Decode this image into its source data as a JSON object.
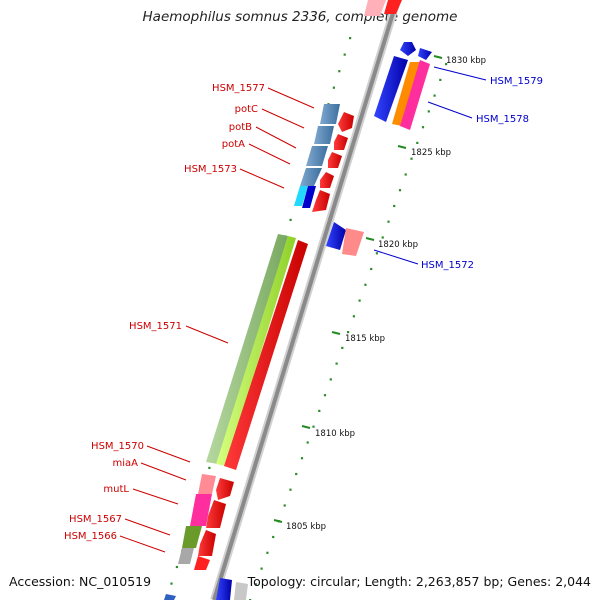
{
  "title": "Haemophilus somnus 2336, complete genome",
  "footer": {
    "accession": "Accession: NC_010519",
    "summary": "Topology: circular; Length: 2,263,857 bp; Genes: 2,044"
  },
  "scale_labels": [
    "1830 kbp",
    "1825 kbp",
    "1820 kbp",
    "1815 kbp",
    "1810 kbp",
    "1805 kbp"
  ],
  "genes_left": [
    "HSM_1577",
    "potC",
    "potB",
    "potA",
    "HSM_1573",
    "HSM_1571",
    "HSM_1570",
    "miaA",
    "mutL",
    "HSM_1567",
    "HSM_1566"
  ],
  "genes_right": [
    "HSM_1579",
    "HSM_1578",
    "HSM_1572"
  ],
  "colors": {
    "forward_label": "#cc0000",
    "reverse_label": "#0000cc",
    "forward_gene": "#ff0000",
    "reverse_gene": "#0000ee",
    "backbone": "#8a8a8a",
    "tick": "#228b22"
  }
}
